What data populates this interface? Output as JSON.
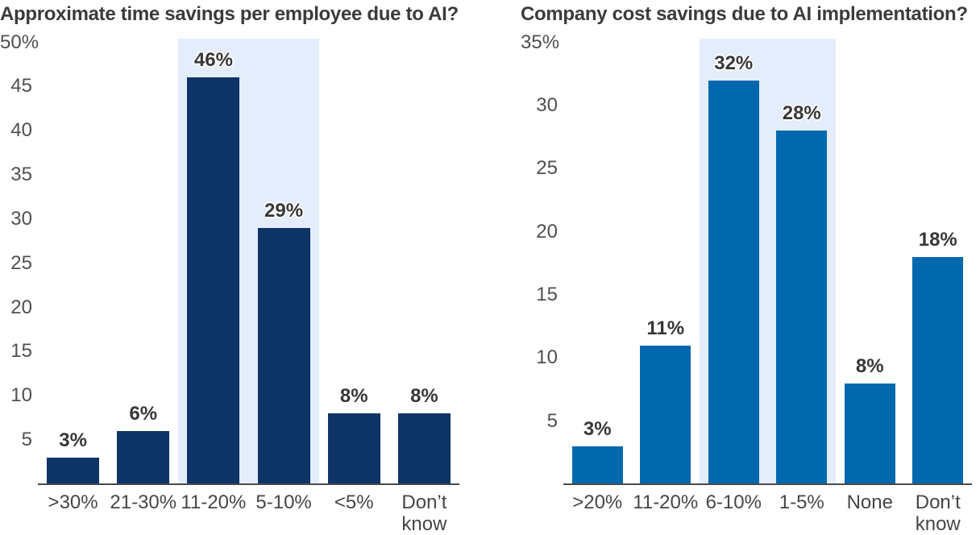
{
  "page_type": "infographic-dual-bar-chart",
  "chart_data": [
    {
      "type": "bar",
      "title": "Approximate time savings per employee due to AI?",
      "categories": [
        ">30%",
        "21-30%",
        "11-20%",
        "5-10%",
        "<5%",
        "Don’t know"
      ],
      "category_lines": [
        [
          ">30%"
        ],
        [
          "21-30%"
        ],
        [
          "11-20%"
        ],
        [
          "5-10%"
        ],
        [
          "<5%"
        ],
        [
          "Don’t",
          "know"
        ]
      ],
      "values": [
        3,
        6,
        46,
        29,
        8,
        8
      ],
      "value_labels": [
        "3%",
        "6%",
        "46%",
        "29%",
        "8%",
        "8%"
      ],
      "xlabel": "",
      "ylabel": "",
      "ylim": [
        0,
        50
      ],
      "yticks": [
        {
          "value": 5,
          "label": "5"
        },
        {
          "value": 10,
          "label": "10"
        },
        {
          "value": 15,
          "label": "15"
        },
        {
          "value": 20,
          "label": "20"
        },
        {
          "value": 25,
          "label": "25"
        },
        {
          "value": 30,
          "label": "30"
        },
        {
          "value": 35,
          "label": "35"
        },
        {
          "value": 40,
          "label": "40"
        },
        {
          "value": 45,
          "label": "45"
        },
        {
          "value": 50,
          "label": "50%"
        }
      ],
      "grid": false,
      "legend": null,
      "bar_color": "#0e3366",
      "highlight_color": "#e3edfb",
      "highlighted_categories": [
        "11-20%",
        "5-10%"
      ],
      "highlight_slot_start": 2,
      "highlight_slot_count": 2
    },
    {
      "type": "bar",
      "title": "Company cost savings due to AI implementation?",
      "categories": [
        ">20%",
        "11-20%",
        "6-10%",
        "1-5%",
        "None",
        "Don’t know"
      ],
      "category_lines": [
        [
          ">20%"
        ],
        [
          "11-20%"
        ],
        [
          "6-10%"
        ],
        [
          "1-5%"
        ],
        [
          "None"
        ],
        [
          "Don’t",
          "know"
        ]
      ],
      "values": [
        3,
        11,
        32,
        28,
        8,
        18
      ],
      "value_labels": [
        "3%",
        "11%",
        "32%",
        "28%",
        "8%",
        "18%"
      ],
      "xlabel": "",
      "ylabel": "",
      "ylim": [
        0,
        35
      ],
      "yticks": [
        {
          "value": 5,
          "label": "5"
        },
        {
          "value": 10,
          "label": "10"
        },
        {
          "value": 15,
          "label": "15"
        },
        {
          "value": 20,
          "label": "20"
        },
        {
          "value": 25,
          "label": "25"
        },
        {
          "value": 30,
          "label": "30"
        },
        {
          "value": 35,
          "label": "35%"
        }
      ],
      "grid": false,
      "legend": null,
      "bar_color": "#0268ae",
      "highlight_color": "#e3edfb",
      "highlighted_categories": [
        "6-10%",
        "1-5%"
      ],
      "highlight_slot_start": 2,
      "highlight_slot_count": 2
    }
  ]
}
